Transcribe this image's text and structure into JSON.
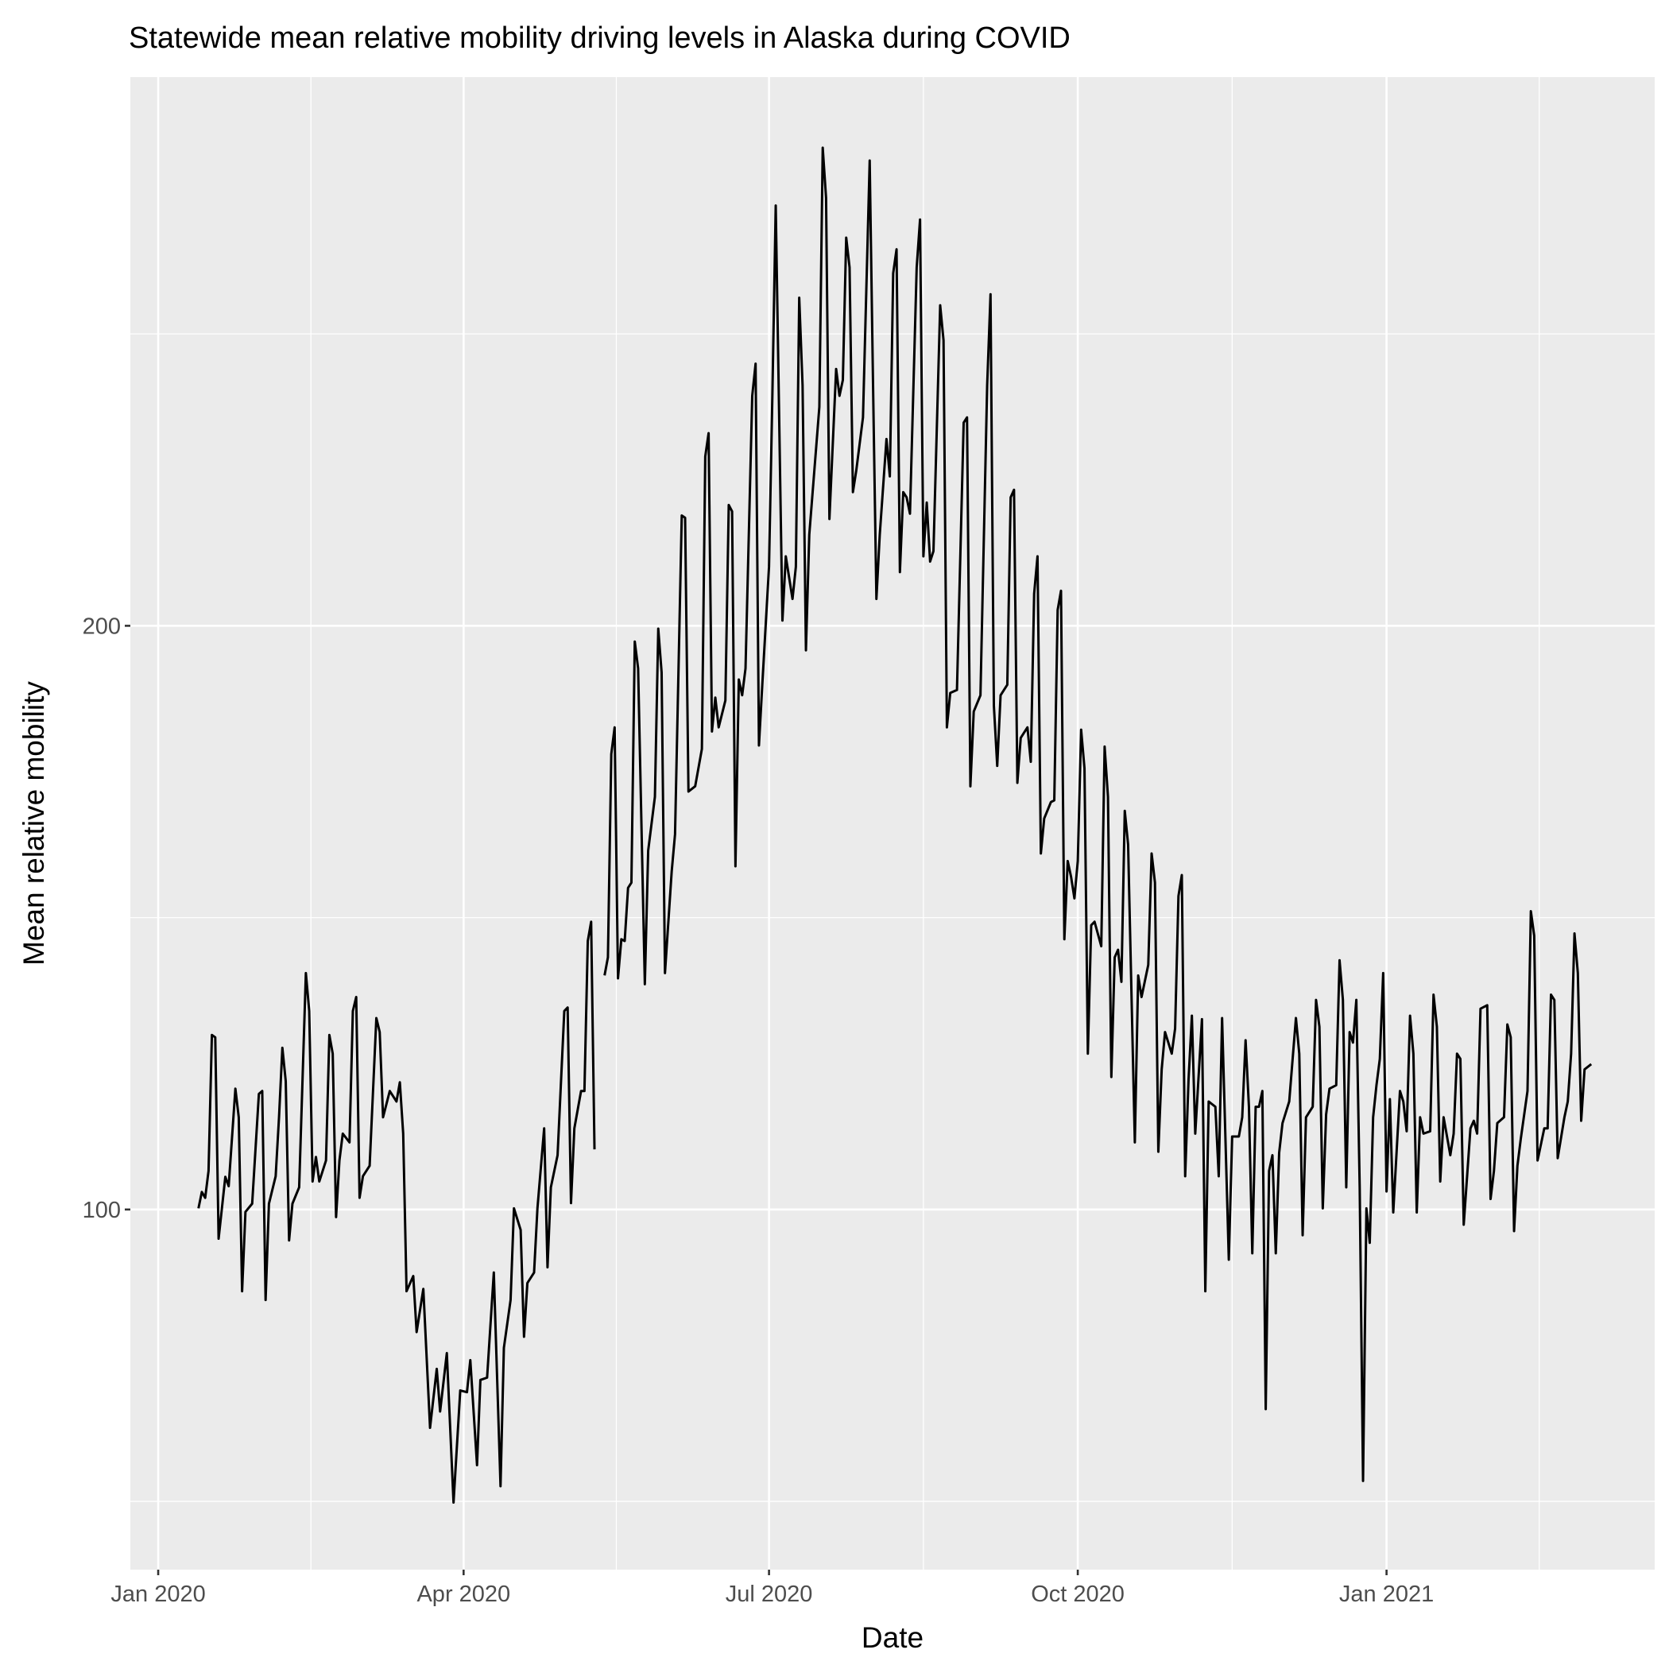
{
  "chart_data": {
    "type": "line",
    "title": "Statewide mean relative mobility driving levels in Alaska during COVID",
    "x_label": "Date",
    "y_label": "Mean relative mobility",
    "xlim": [
      -8.3,
      445.9
    ],
    "xticks": [
      {
        "value": 0,
        "label": "Jan 2020"
      },
      {
        "value": 91,
        "label": "Apr 2020"
      },
      {
        "value": 182,
        "label": "Jul 2020"
      },
      {
        "value": 274,
        "label": "Oct 2020"
      },
      {
        "value": 366,
        "label": "Jan 2021"
      }
    ],
    "x_minor_grid": [
      45.5,
      136.5,
      228,
      320,
      411.5
    ],
    "ylim": [
      38.3,
      294
    ],
    "yticks": [
      100,
      200
    ],
    "y_minor_grid": [
      50,
      150,
      250
    ],
    "grid": true,
    "color": "#000000",
    "x": [
      12,
      13,
      14,
      15,
      16,
      17,
      18,
      20,
      21,
      23,
      24,
      25,
      26,
      28,
      30,
      31,
      32,
      33,
      35,
      36,
      37,
      38,
      39,
      40,
      42,
      44,
      45,
      46,
      47,
      48,
      50,
      51,
      52,
      53,
      54,
      55,
      57,
      58,
      59,
      60,
      61,
      63,
      65,
      66,
      67,
      69,
      71,
      72,
      73,
      74,
      76,
      77,
      79,
      81,
      83,
      84,
      86,
      88,
      90,
      92,
      93,
      95,
      96,
      98,
      100,
      102,
      103,
      105,
      106,
      108,
      109,
      110,
      112,
      113,
      115,
      116,
      117,
      119,
      121,
      122,
      123,
      124,
      126,
      127,
      128,
      129,
      130,
      131,
      133,
      134,
      135,
      136,
      137,
      138,
      139,
      140,
      141,
      142,
      143,
      145,
      146,
      148,
      149,
      150,
      151,
      153,
      154,
      156,
      157,
      158,
      160,
      162,
      163,
      164,
      165,
      166,
      167,
      169,
      170,
      171,
      172,
      173,
      174,
      175,
      177,
      178,
      179,
      180,
      182,
      183,
      184,
      185,
      186,
      187,
      189,
      190,
      191,
      192,
      193,
      194,
      196,
      197,
      198,
      199,
      200,
      202,
      203,
      204,
      205,
      206,
      207,
      208,
      210,
      211,
      212,
      213,
      214,
      215,
      217,
      218,
      219,
      220,
      221,
      222,
      223,
      224,
      226,
      227,
      228,
      229,
      230,
      231,
      233,
      234,
      235,
      236,
      238,
      240,
      241,
      242,
      243,
      245,
      247,
      248,
      249,
      250,
      251,
      253,
      254,
      255,
      256,
      257,
      259,
      260,
      261,
      262,
      263,
      264,
      266,
      267,
      268,
      269,
      270,
      271,
      272,
      273,
      274,
      275,
      276,
      277,
      278,
      279,
      281,
      282,
      283,
      284,
      285,
      286,
      287,
      288,
      289,
      291,
      292,
      293,
      295,
      296,
      297,
      298,
      299,
      300,
      302,
      303,
      304,
      305,
      306,
      307,
      308,
      309,
      311,
      312,
      313,
      315,
      316,
      317,
      319,
      320,
      322,
      323,
      324,
      325,
      326,
      327,
      328,
      329,
      330,
      331,
      332,
      333,
      334,
      335,
      337,
      339,
      340,
      341,
      342,
      344,
      345,
      346,
      347,
      348,
      349,
      351,
      352,
      353,
      354,
      355,
      356,
      357,
      358,
      359,
      360,
      361,
      362,
      363,
      364,
      365,
      366,
      367,
      368,
      370,
      371,
      372,
      373,
      374,
      375,
      376,
      377,
      379,
      380,
      381,
      382,
      383,
      385,
      386,
      387,
      388,
      389,
      391,
      392,
      393,
      394,
      396,
      397,
      398,
      399,
      401,
      402,
      403,
      404,
      405,
      406,
      408,
      409,
      410,
      411,
      413,
      414,
      415,
      416,
      417,
      419,
      420,
      421,
      422,
      423,
      424,
      425,
      427
    ],
    "values": [
      100.2,
      103,
      102,
      106.6,
      129.9,
      129.5,
      95,
      105.6,
      104,
      120.7,
      115.8,
      86,
      99.6,
      101,
      119.8,
      120.3,
      84.5,
      101,
      105.7,
      115.8,
      127.7,
      122,
      94.7,
      101,
      103.8,
      140.5,
      134,
      104.8,
      109,
      104.8,
      108.4,
      129.9,
      126.7,
      98.7,
      108.4,
      113,
      111.5,
      134,
      136.4,
      102,
      105.7,
      107.5,
      132.8,
      130.4,
      115.8,
      120.3,
      118.5,
      121.8,
      113,
      86,
      88.6,
      79,
      86.4,
      62.6,
      72.7,
      65.4,
      75.4,
      49.8,
      69,
      68.7,
      74.2,
      56.2,
      70.8,
      71.2,
      89.2,
      52.6,
      76.3,
      84.5,
      100.2,
      96.5,
      78.2,
      87.4,
      89.2,
      100.2,
      113.9,
      90.1,
      103.8,
      109.3,
      134,
      134.6,
      101.1,
      113.9,
      120.3,
      120.3,
      146,
      149.3,
      110.3,
      null,
      140.1,
      143.2,
      178,
      182.6,
      139.6,
      146.3,
      146,
      155.1,
      156,
      197.3,
      192.7,
      138.6,
      161.5,
      170.7,
      199.5,
      192,
      140.5,
      157.9,
      164.3,
      218.9,
      218.5,
      171.6,
      172.5,
      178.9,
      229,
      233,
      181.9,
      187.7,
      182.6,
      187.2,
      220.7,
      219.6,
      158.8,
      190.8,
      188.1,
      192.7,
      239.4,
      244.9,
      179.5,
      189.9,
      210.1,
      239.4,
      272,
      236.6,
      200.9,
      211.9,
      204.6,
      210.1,
      256.2,
      241.2,
      195.8,
      215.6,
      230.2,
      237.5,
      281.9,
      273.3,
      218.3,
      244,
      239.4,
      242.1,
      266.5,
      261.4,
      222.9,
      226.6,
      235.7,
      257.7,
      279.7,
      241.2,
      204.6,
      215.6,
      232,
      225.6,
      260.4,
      264.5,
      209.2,
      222.9,
      222,
      219.2,
      261.4,
      269.6,
      211.9,
      221.1,
      211,
      212.8,
      254.9,
      248.9,
      182.6,
      188.5,
      189,
      234.8,
      235.7,
      172.5,
      185.3,
      188.1,
      241.2,
      256.8,
      186.3,
      176,
      188.1,
      189.9,
      222,
      223.3,
      173.1,
      180.8,
      182.6,
      176.7,
      205.5,
      211.9,
      161,
      167,
      169.8,
      170.1,
      202.7,
      206,
      146.3,
      159.7,
      157,
      153.3,
      159.7,
      182.2,
      175.6,
      126.7,
      148.7,
      149.3,
      145.1,
      179.3,
      170.7,
      122.7,
      143.2,
      144.5,
      139,
      168.3,
      162.5,
      111.5,
      140.1,
      136.4,
      141.9,
      161,
      156,
      109.9,
      124,
      130.4,
      126.7,
      131,
      153.7,
      157.3,
      105.7,
      122.2,
      133.2,
      113,
      132.6,
      86,
      118.5,
      117.6,
      105.7,
      132.8,
      91.4,
      112.5,
      112.5,
      115.8,
      129,
      117.6,
      92.5,
      117.6,
      117.6,
      120.3,
      65.8,
      106.6,
      109.3,
      92.5,
      109.7,
      114.8,
      118.5,
      132.8,
      126.7,
      95.6,
      115.8,
      117.6,
      135.9,
      131.3,
      100.2,
      116.3,
      120.7,
      121.3,
      142.7,
      135.9,
      103.8,
      130.4,
      128.6,
      135.9,
      103.8,
      53.5,
      100.2,
      94.3,
      115.8,
      121.3,
      125.8,
      140.5,
      103.1,
      118.9,
      99.5,
      120.3,
      118.5,
      113.4,
      133.2,
      126.7,
      99.5,
      115.8,
      113,
      113.4,
      136.8,
      131.3,
      104.8,
      115.8,
      109.3,
      113,
      126.7,
      125.8,
      97.4,
      113.9,
      115.2,
      113,
      134.4,
      135,
      101.8,
      106.6,
      114.8,
      115.8,
      131.7,
      129.5,
      96.3,
      107.5,
      112.1,
      120.3,
      151.1,
      146.9,
      108.4,
      113.9,
      113.9,
      136.8,
      135.9,
      108.8,
      115.8,
      118.5,
      126.7,
      147.3,
      140.5,
      115.2,
      124,
      124.9
    ]
  }
}
